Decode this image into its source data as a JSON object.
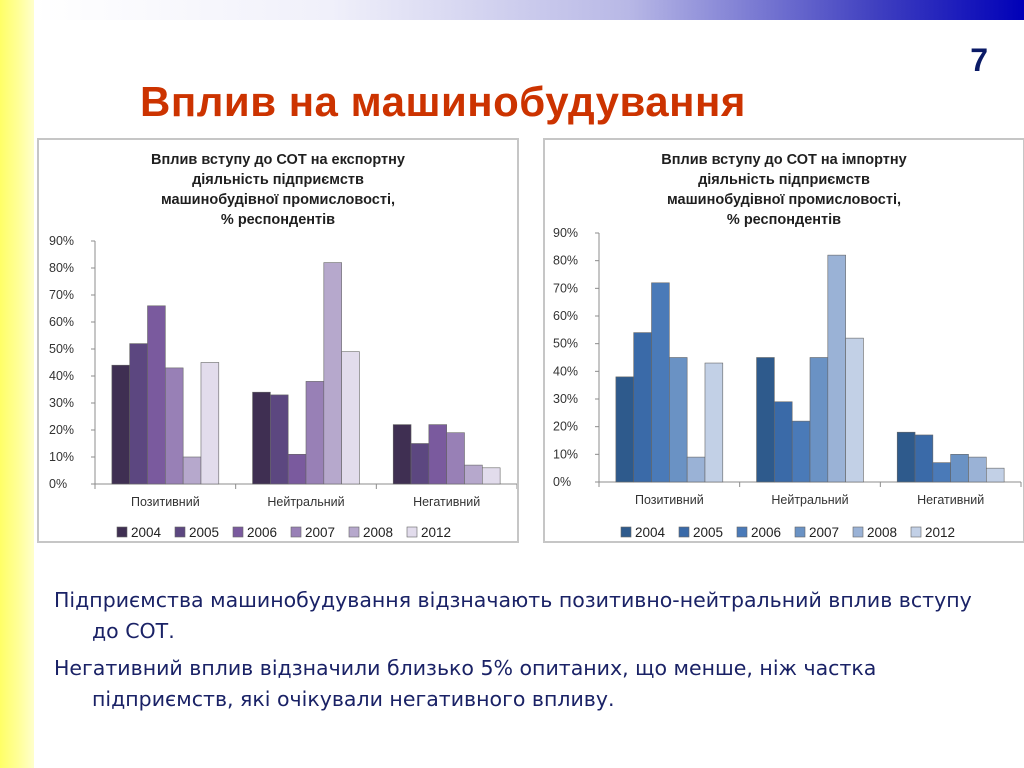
{
  "slide": {
    "number": "7",
    "title": "Вплив на машинобудування",
    "paragraphs": [
      "Підприємства машинобудування відзначають позитивно-нейтральний вплив вступу до СОТ.",
      "Негативний вплив відзначили близько 5% опитаних, що менше, ніж частка підприємств, які очікували негативного впливу."
    ]
  },
  "chart_data": [
    {
      "type": "bar",
      "title_lines": [
        "Вплив вступу до СОТ на експортну",
        "діяльність підприємств",
        "машинобудівної промисловості,",
        "% респондентів"
      ],
      "categories": [
        "Позитивний",
        "Нейтральний",
        "Негативний"
      ],
      "yticks": [
        "0%",
        "10%",
        "20%",
        "30%",
        "40%",
        "50%",
        "60%",
        "70%",
        "80%",
        "90%"
      ],
      "ylim": [
        0,
        90
      ],
      "legend_position": "bottom",
      "series": [
        {
          "name": "2004",
          "color": "#3f2f52",
          "values": [
            44,
            34,
            22
          ]
        },
        {
          "name": "2005",
          "color": "#5c4780",
          "values": [
            52,
            33,
            15
          ]
        },
        {
          "name": "2006",
          "color": "#7a5a9e",
          "values": [
            66,
            11,
            22
          ]
        },
        {
          "name": "2007",
          "color": "#9880b6",
          "values": [
            43,
            38,
            19
          ]
        },
        {
          "name": "2008",
          "color": "#b6a8cc",
          "values": [
            10,
            82,
            7
          ]
        },
        {
          "name": "2012",
          "color": "#e2dcec",
          "values": [
            45,
            49,
            6
          ]
        }
      ]
    },
    {
      "type": "bar",
      "title_lines": [
        "Вплив вступу до СОТ на імпортну",
        "діяльність підприємств",
        "машинобудівної промисловості,",
        "% респондентів"
      ],
      "categories": [
        "Позитивний",
        "Нейтральний",
        "Негативний"
      ],
      "yticks": [
        "0%",
        "10%",
        "20%",
        "30%",
        "40%",
        "50%",
        "60%",
        "70%",
        "80%",
        "90%"
      ],
      "ylim": [
        0,
        90
      ],
      "legend_position": "bottom",
      "series": [
        {
          "name": "2004",
          "color": "#2e5a8c",
          "values": [
            38,
            45,
            18
          ]
        },
        {
          "name": "2005",
          "color": "#3a6aa8",
          "values": [
            54,
            29,
            17
          ]
        },
        {
          "name": "2006",
          "color": "#4a7ab8",
          "values": [
            72,
            22,
            7
          ]
        },
        {
          "name": "2007",
          "color": "#6a92c4",
          "values": [
            45,
            45,
            10
          ]
        },
        {
          "name": "2008",
          "color": "#9ab2d6",
          "values": [
            9,
            82,
            9
          ]
        },
        {
          "name": "2012",
          "color": "#c2d0e6",
          "values": [
            43,
            52,
            5
          ]
        }
      ]
    }
  ]
}
